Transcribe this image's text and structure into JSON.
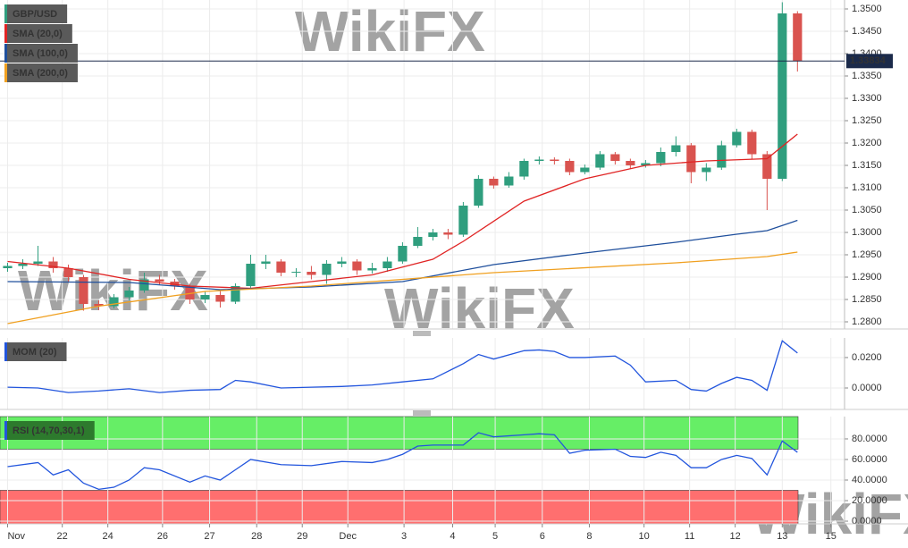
{
  "watermark": "WikiFX",
  "chart_data": [
    {
      "type": "candlestick",
      "title": "GBP/USD",
      "x": [
        0,
        1,
        2,
        3,
        4,
        5,
        6,
        7,
        8,
        9,
        10,
        11,
        12,
        13,
        14,
        15,
        16,
        17,
        18,
        19,
        20,
        21,
        22,
        23,
        24,
        25,
        26,
        27,
        28,
        29,
        30,
        31,
        32,
        33,
        34,
        35,
        36,
        37,
        38,
        39,
        40,
        41,
        42,
        43,
        44,
        45,
        46,
        47,
        48,
        49,
        50,
        51,
        52
      ],
      "open": [
        1.292,
        1.2925,
        1.293,
        1.2935,
        1.292,
        1.29,
        1.284,
        1.2835,
        1.2855,
        1.287,
        1.2895,
        1.289,
        1.288,
        1.285,
        1.286,
        1.2845,
        1.288,
        1.293,
        1.2935,
        1.291,
        1.2912,
        1.2905,
        1.293,
        1.2935,
        1.2915,
        1.292,
        1.2935,
        1.297,
        1.299,
        1.3,
        1.2995,
        1.306,
        1.312,
        1.3105,
        1.3125,
        1.316,
        1.3163,
        1.316,
        1.3135,
        1.3145,
        1.3175,
        1.316,
        1.315,
        1.3155,
        1.318,
        1.3195,
        1.3135,
        1.3145,
        1.3195,
        1.3225,
        1.3175,
        1.312,
        1.349
      ],
      "high": [
        1.2932,
        1.294,
        1.297,
        1.2945,
        1.2928,
        1.2905,
        1.2848,
        1.2862,
        1.2878,
        1.291,
        1.2905,
        1.2896,
        1.2885,
        1.2868,
        1.287,
        1.2886,
        1.295,
        1.295,
        1.294,
        1.292,
        1.2925,
        1.2938,
        1.2945,
        1.294,
        1.2932,
        1.2945,
        1.2978,
        1.3012,
        1.3008,
        1.3008,
        1.3068,
        1.3128,
        1.3125,
        1.3135,
        1.3165,
        1.317,
        1.3168,
        1.3165,
        1.3152,
        1.3182,
        1.318,
        1.3165,
        1.3162,
        1.319,
        1.3215,
        1.32,
        1.3155,
        1.3205,
        1.3232,
        1.323,
        1.3182,
        1.3515,
        1.3495
      ],
      "low": [
        1.2912,
        1.2918,
        1.2925,
        1.291,
        1.289,
        1.2825,
        1.2826,
        1.283,
        1.2848,
        1.2865,
        1.2884,
        1.2872,
        1.284,
        1.2842,
        1.2832,
        1.284,
        1.2875,
        1.2918,
        1.2902,
        1.29,
        1.2895,
        1.2885,
        1.2922,
        1.2905,
        1.2908,
        1.2912,
        1.293,
        1.2965,
        1.2982,
        1.2985,
        1.299,
        1.3055,
        1.3098,
        1.31,
        1.3118,
        1.3152,
        1.3152,
        1.3128,
        1.313,
        1.314,
        1.3152,
        1.3142,
        1.3145,
        1.3148,
        1.317,
        1.311,
        1.3115,
        1.314,
        1.319,
        1.3165,
        1.305,
        1.3115,
        1.336
      ],
      "close": [
        1.2925,
        1.293,
        1.2935,
        1.292,
        1.29,
        1.284,
        1.2835,
        1.2855,
        1.287,
        1.2895,
        1.289,
        1.288,
        1.285,
        1.286,
        1.2845,
        1.288,
        1.293,
        1.2935,
        1.291,
        1.2912,
        1.2905,
        1.293,
        1.2935,
        1.2915,
        1.292,
        1.2935,
        1.297,
        1.299,
        1.3,
        1.2995,
        1.306,
        1.312,
        1.3105,
        1.3125,
        1.316,
        1.3163,
        1.316,
        1.3135,
        1.3145,
        1.3175,
        1.316,
        1.315,
        1.3155,
        1.318,
        1.3195,
        1.3135,
        1.3145,
        1.3195,
        1.3225,
        1.3175,
        1.312,
        1.349,
        1.3383
      ],
      "up_color": "#2f9e7e",
      "down_color": "#d9534f",
      "series": [
        {
          "name": "SMA (20,0)",
          "color": "#e02424",
          "x": [
            0,
            4,
            8,
            12,
            16,
            20,
            24,
            28,
            30,
            34,
            38,
            42,
            46,
            50,
            52
          ],
          "values": [
            1.2935,
            1.292,
            1.2895,
            1.288,
            1.2875,
            1.289,
            1.2905,
            1.294,
            1.298,
            1.307,
            1.312,
            1.315,
            1.316,
            1.3165,
            1.322
          ]
        },
        {
          "name": "SMA (100,0)",
          "color": "#1f4f9c",
          "x": [
            0,
            8,
            14,
            20,
            26,
            32,
            38,
            44,
            48,
            50,
            52
          ],
          "values": [
            1.289,
            1.2888,
            1.2872,
            1.2878,
            1.289,
            1.2928,
            1.2954,
            1.2978,
            1.2996,
            1.3004,
            1.3027
          ]
        },
        {
          "name": "SMA (200,0)",
          "color": "#f0a020",
          "x": [
            0,
            6,
            13,
            20,
            32,
            44,
            50,
            52
          ],
          "values": [
            1.2796,
            1.2835,
            1.2868,
            1.288,
            1.291,
            1.2932,
            1.2946,
            1.2956
          ]
        }
      ],
      "last_price": 1.33834,
      "xlim": [
        -0.5,
        55.1
      ],
      "ylim": [
        1.2784,
        1.352
      ],
      "yticks": [
        {
          "value": 1.28,
          "label": "1.2800"
        },
        {
          "value": 1.285,
          "label": "1.2850"
        },
        {
          "value": 1.29,
          "label": "1.2900"
        },
        {
          "value": 1.295,
          "label": "1.2950"
        },
        {
          "value": 1.3,
          "label": "1.3000"
        },
        {
          "value": 1.305,
          "label": "1.3050"
        },
        {
          "value": 1.31,
          "label": "1.3100"
        },
        {
          "value": 1.315,
          "label": "1.3150"
        },
        {
          "value": 1.32,
          "label": "1.3200"
        },
        {
          "value": 1.325,
          "label": "1.3250"
        },
        {
          "value": 1.33,
          "label": "1.3300"
        },
        {
          "value": 1.335,
          "label": "1.3350"
        },
        {
          "value": 1.34,
          "label": "1.3400"
        },
        {
          "value": 1.345,
          "label": "1.3450"
        },
        {
          "value": 1.35,
          "label": "1.3500"
        }
      ]
    },
    {
      "type": "line",
      "series": [
        {
          "name": "MOM (20)",
          "color": "#2255dd",
          "x": [
            0,
            2,
            4,
            6,
            8,
            10,
            12,
            14,
            15,
            16,
            18,
            20,
            22,
            24,
            26,
            28,
            30,
            31,
            32,
            34,
            35,
            36,
            37,
            38,
            40,
            41,
            42,
            44,
            45,
            46,
            47,
            48,
            49,
            50,
            51,
            52
          ],
          "values": [
            0.0005,
            0.0,
            -0.003,
            -0.002,
            -0.0005,
            -0.003,
            -0.0015,
            -0.001,
            0.005,
            0.004,
            0.0,
            0.0005,
            0.001,
            0.002,
            0.004,
            0.006,
            0.016,
            0.022,
            0.019,
            0.0245,
            0.025,
            0.024,
            0.02,
            0.02,
            0.021,
            0.015,
            0.004,
            0.005,
            -0.001,
            -0.002,
            0.003,
            0.007,
            0.005,
            -0.0015,
            0.031,
            0.023
          ]
        }
      ],
      "xlim": [
        -0.5,
        55.1
      ],
      "ylim": [
        -0.0141,
        0.0329
      ],
      "yticks": [
        {
          "value": 0.02,
          "label": "0.0200"
        },
        {
          "value": 0,
          "label": "0.0000"
        }
      ]
    },
    {
      "type": "line",
      "series": [
        {
          "name": "RSI (14,70,30,1)",
          "color": "#2255dd",
          "x": [
            0,
            2,
            3,
            4,
            5,
            6,
            7,
            8,
            9,
            10,
            12,
            13,
            14,
            15,
            16,
            18,
            20,
            22,
            24,
            25,
            26,
            27,
            28,
            30,
            31,
            32,
            34,
            35,
            36,
            37,
            38,
            40,
            41,
            42,
            43,
            44,
            45,
            46,
            47,
            48,
            49,
            50,
            51,
            52
          ],
          "values": [
            53,
            57,
            45,
            50,
            37,
            31,
            33,
            40,
            52,
            50,
            38,
            44,
            40,
            50,
            60,
            55,
            54,
            58,
            57,
            60,
            65,
            73,
            74,
            74,
            86,
            82,
            84,
            85,
            84,
            66,
            69,
            70,
            63,
            62,
            67,
            64,
            52,
            52,
            60,
            64,
            61,
            45,
            78,
            67
          ]
        }
      ],
      "overbought": 70,
      "oversold": 30,
      "overbought_color": "#66ee66",
      "oversold_color": "#ff6f6f",
      "xlim": [
        -0.5,
        55.1
      ],
      "ylim": [
        -2.6,
        101.7
      ],
      "yticks": [
        {
          "value": 0,
          "label": "0.0000"
        },
        {
          "value": 20,
          "label": "20.0000"
        },
        {
          "value": 40,
          "label": "40.0000"
        },
        {
          "value": 60,
          "label": "60.0000"
        },
        {
          "value": 80,
          "label": "80.0000"
        }
      ],
      "xticks": [
        {
          "value": 0,
          "label": "Nov"
        },
        {
          "value": 3.6,
          "label": "22"
        },
        {
          "value": 6.6,
          "label": "24"
        },
        {
          "value": 10.2,
          "label": "26"
        },
        {
          "value": 13.3,
          "label": "27"
        },
        {
          "value": 16.4,
          "label": "28"
        },
        {
          "value": 19.4,
          "label": "29"
        },
        {
          "value": 22.4,
          "label": "Dec"
        },
        {
          "value": 26.1,
          "label": "3"
        },
        {
          "value": 29.3,
          "label": "4"
        },
        {
          "value": 32.1,
          "label": "5"
        },
        {
          "value": 35.2,
          "label": "6"
        },
        {
          "value": 38.3,
          "label": "8"
        },
        {
          "value": 41.9,
          "label": "10"
        },
        {
          "value": 44.9,
          "label": "11"
        },
        {
          "value": 47.9,
          "label": "12"
        },
        {
          "value": 51,
          "label": "13"
        },
        {
          "value": 54.2,
          "label": "15"
        }
      ]
    }
  ]
}
